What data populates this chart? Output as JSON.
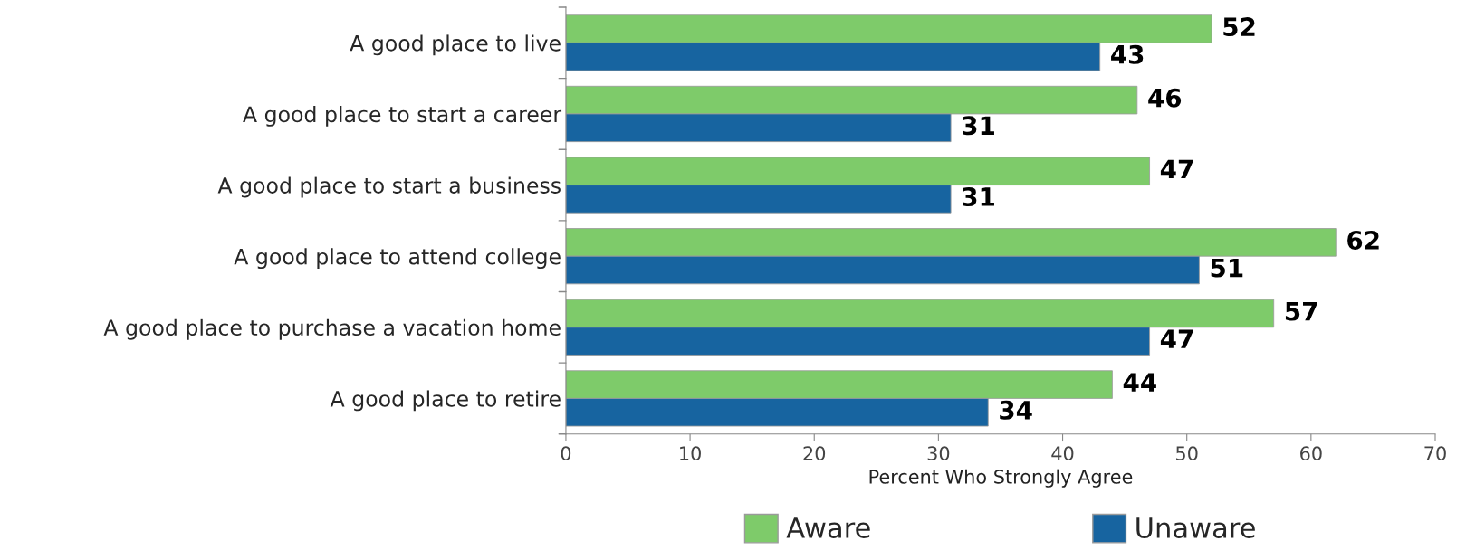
{
  "chart_data": {
    "type": "bar",
    "orientation": "horizontal",
    "xlabel": "Percent Who Strongly Agree",
    "categories": [
      "A good place to live",
      "A good place to start a career",
      "A good place to start a business",
      "A good place to attend college",
      "A good place to purchase a vacation home",
      "A good place to retire"
    ],
    "series": [
      {
        "name": "Aware",
        "color": "#7ecb6a",
        "values": [
          52,
          46,
          47,
          62,
          57,
          44
        ]
      },
      {
        "name": "Unaware",
        "color": "#1764a0",
        "values": [
          43,
          31,
          31,
          51,
          47,
          34
        ]
      }
    ],
    "xlim": [
      0,
      70
    ],
    "xticks": [
      0,
      10,
      20,
      30,
      40,
      50,
      60,
      70
    ],
    "data_labels": true,
    "legend": "bottom",
    "grid": false
  }
}
